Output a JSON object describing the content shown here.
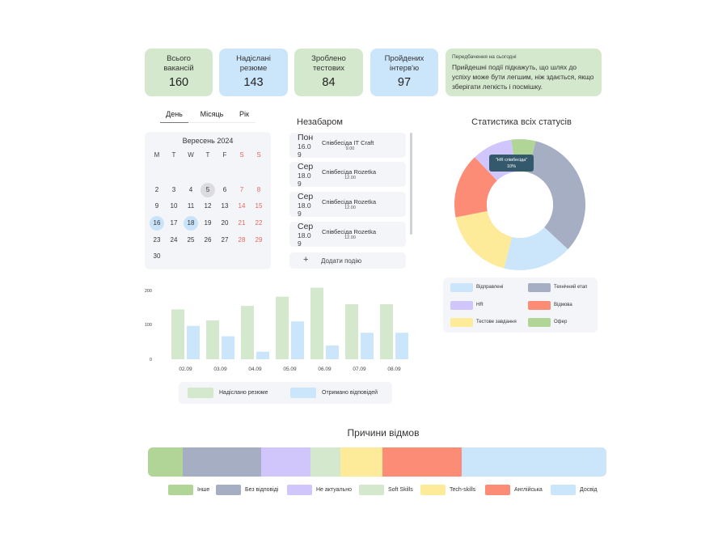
{
  "stats": [
    {
      "label": "Всього вакансій",
      "value": "160",
      "tone": "green"
    },
    {
      "label": "Надіслані резюме",
      "value": "143",
      "tone": "blue"
    },
    {
      "label": "Зроблено тестових",
      "value": "84",
      "tone": "green"
    },
    {
      "label": "Пройдених інтерв'ю",
      "value": "97",
      "tone": "blue"
    }
  ],
  "prediction": {
    "title": "Передбачення на сьогодні",
    "text": "Прийдешні події підкажуть, що шлях до успіху може бути легшим, ніж здається, якщо зберігати легкість і посмішку."
  },
  "tabs": [
    "День",
    "Місяць",
    "Рік"
  ],
  "calendar": {
    "title": "Вересень  2024",
    "weekdays": [
      "M",
      "T",
      "W",
      "T",
      "F",
      "S",
      "S"
    ],
    "days": [
      "2",
      "3",
      "4",
      "5",
      "6",
      "7",
      "8",
      "9",
      "10",
      "11",
      "12",
      "13",
      "14",
      "15",
      "16",
      "17",
      "18",
      "19",
      "20",
      "21",
      "22",
      "23",
      "24",
      "25",
      "26",
      "27",
      "28",
      "29",
      "30"
    ],
    "today": "5",
    "selected": [
      "16",
      "18"
    ]
  },
  "upcoming": {
    "title": "Незабаром",
    "events": [
      {
        "d1": "Пон",
        "d2": "16.0",
        "d3": "9",
        "name": "Співбесіда IT Craft",
        "time": "9.00"
      },
      {
        "d1": "Сер",
        "d2": "18.0",
        "d3": "9",
        "name": "Співбесіда  Rozetka",
        "time": "12.00"
      },
      {
        "d1": "Сер",
        "d2": "18.0",
        "d3": "9",
        "name": "Співбесіда  Rozetka",
        "time": "12.00"
      },
      {
        "d1": "Сер",
        "d2": "18.0",
        "d3": "9",
        "name": "Співбесіда  Rozetka",
        "time": "12.00"
      }
    ],
    "add_label": "Додати подію",
    "add_icon": "+"
  },
  "chart_data": [
    {
      "type": "bar",
      "categories": [
        "02.09",
        "03.09",
        "04.09",
        "05.09",
        "06.09",
        "07.09",
        "08.09"
      ],
      "series": [
        {
          "name": "Надіслано резюме",
          "values": [
            145,
            113,
            155,
            182,
            208,
            160,
            160
          ],
          "color": "#d3e8cc"
        },
        {
          "name": "Отримано відповідей",
          "values": [
            97,
            67,
            22,
            110,
            40,
            77,
            77
          ],
          "color": "#cbe6fb"
        }
      ],
      "yticks": [
        "200",
        "100",
        "0"
      ],
      "ylim": [
        0,
        200
      ]
    },
    {
      "type": "pie",
      "title": "Статистика всіх статусів",
      "slices": [
        {
          "label": "Офер",
          "value": 6,
          "color": "#b0d597"
        },
        {
          "label": "Технічний етап",
          "value": 33,
          "color": "#a6aec4"
        },
        {
          "label": "Відправлені",
          "value": 17,
          "color": "#cbe6fb"
        },
        {
          "label": "Тестове завдання",
          "value": 18,
          "color": "#fdeb99"
        },
        {
          "label": "Відмова",
          "value": 16,
          "color": "#fc8c76"
        },
        {
          "label": "HR",
          "value": 10,
          "color": "#d0c6fb"
        }
      ],
      "tooltip": {
        "label": "\"HR співбесіда\"",
        "value": "10%"
      }
    }
  ],
  "donut_legend": [
    {
      "label": "Відправлені",
      "color": "#cbe6fb"
    },
    {
      "label": "Технічний етап",
      "color": "#a6aec4"
    },
    {
      "label": "HR",
      "color": "#d0c6fb"
    },
    {
      "label": "Відмова",
      "color": "#fc8c76"
    },
    {
      "label": "Тестове завдання",
      "color": "#fdeb99"
    },
    {
      "label": "Офер",
      "color": "#b0d597"
    }
  ],
  "rejections": {
    "title": "Причини відмов",
    "segments": [
      {
        "label": "Інше",
        "share": 7.6,
        "color": "#b0d597"
      },
      {
        "label": "Без відповіді",
        "share": 17.1,
        "color": "#a6aec4"
      },
      {
        "label": "Не актуально",
        "share": 10.8,
        "color": "#d0c6fb"
      },
      {
        "label": "Soft Skills",
        "share": 6.4,
        "color": "#d3e8cc"
      },
      {
        "label": "Tech-skills",
        "share": 9.3,
        "color": "#fdeb99"
      },
      {
        "label": "Англійська",
        "share": 17.3,
        "color": "#fc8c76"
      },
      {
        "label": "Досвід",
        "share": 31.5,
        "color": "#cbe6fb"
      }
    ]
  }
}
